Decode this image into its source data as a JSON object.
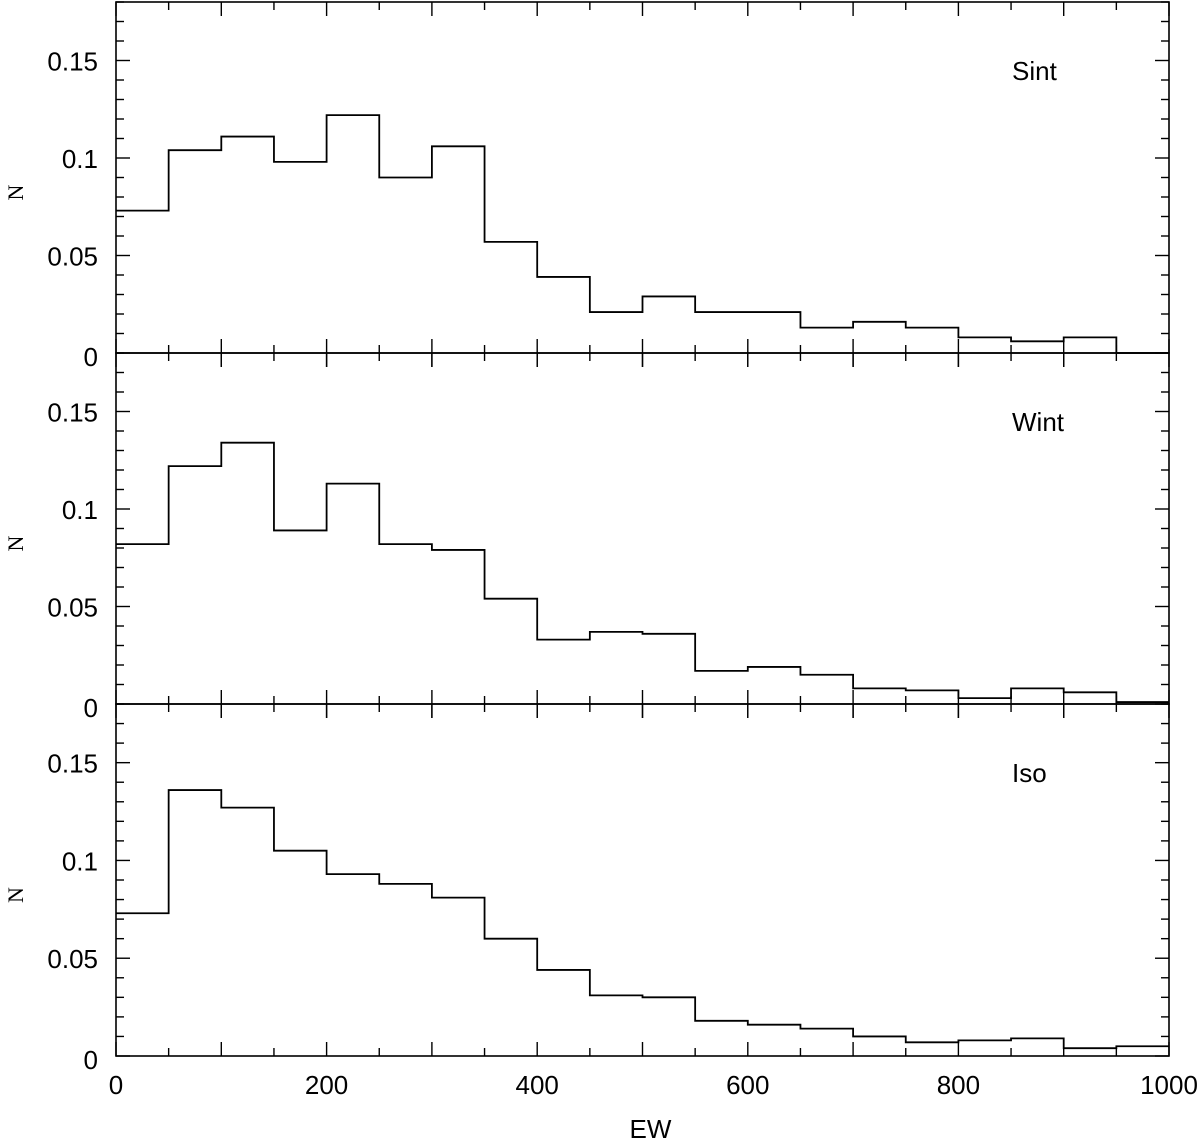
{
  "chart_data": [
    {
      "type": "bar",
      "label": "Sint",
      "ylabel": "N",
      "xlabel": "",
      "bin_width": 50,
      "x": [
        0,
        50,
        100,
        150,
        200,
        250,
        300,
        350,
        400,
        450,
        500,
        550,
        600,
        650,
        700,
        750,
        800,
        850,
        900,
        950
      ],
      "values": [
        0.073,
        0.104,
        0.111,
        0.098,
        0.122,
        0.09,
        0.106,
        0.057,
        0.039,
        0.021,
        0.029,
        0.021,
        0.021,
        0.013,
        0.016,
        0.013,
        0.008,
        0.006,
        0.008,
        0.0
      ],
      "xlim": [
        0,
        1000
      ],
      "ylim": [
        0,
        0.18
      ],
      "yticks": [
        "0",
        "0.05",
        "0.1",
        "0.15"
      ]
    },
    {
      "type": "bar",
      "label": "Wint",
      "ylabel": "N",
      "xlabel": "",
      "bin_width": 50,
      "x": [
        0,
        50,
        100,
        150,
        200,
        250,
        300,
        350,
        400,
        450,
        500,
        550,
        600,
        650,
        700,
        750,
        800,
        850,
        900,
        950
      ],
      "values": [
        0.082,
        0.122,
        0.134,
        0.089,
        0.113,
        0.082,
        0.079,
        0.054,
        0.033,
        0.037,
        0.036,
        0.017,
        0.019,
        0.015,
        0.008,
        0.007,
        0.003,
        0.008,
        0.006,
        0.001
      ],
      "xlim": [
        0,
        1000
      ],
      "ylim": [
        0,
        0.18
      ],
      "yticks": [
        "0",
        "0.05",
        "0.1",
        "0.15"
      ]
    },
    {
      "type": "bar",
      "label": "Iso",
      "ylabel": "N",
      "xlabel": "EW",
      "bin_width": 50,
      "x": [
        0,
        50,
        100,
        150,
        200,
        250,
        300,
        350,
        400,
        450,
        500,
        550,
        600,
        650,
        700,
        750,
        800,
        850,
        900,
        950
      ],
      "values": [
        0.073,
        0.136,
        0.127,
        0.105,
        0.093,
        0.088,
        0.081,
        0.06,
        0.044,
        0.031,
        0.03,
        0.018,
        0.016,
        0.014,
        0.01,
        0.007,
        0.008,
        0.009,
        0.004,
        0.005
      ],
      "xlim": [
        0,
        1000
      ],
      "ylim": [
        0,
        0.18
      ],
      "yticks": [
        "0",
        "0.05",
        "0.1",
        "0.15"
      ],
      "xticks": [
        "0",
        "200",
        "400",
        "600",
        "800",
        "1000"
      ]
    }
  ]
}
